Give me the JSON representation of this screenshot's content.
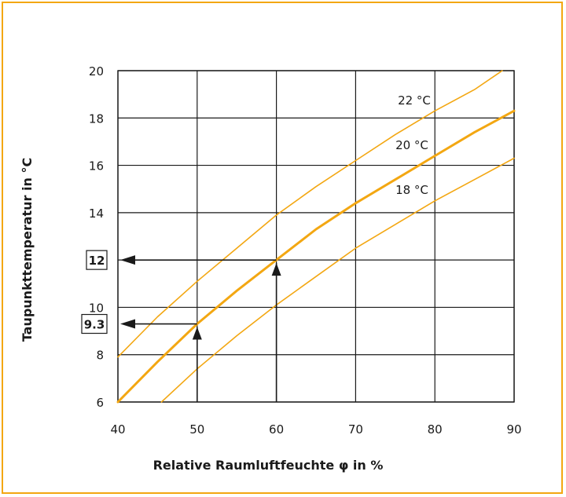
{
  "chart_data": {
    "type": "line",
    "xlabel": "Relative Raumluftfeuchte φ in %",
    "ylabel": "Taupunkttemperatur  in °C",
    "xlim": [
      40,
      90
    ],
    "ylim": [
      6,
      20
    ],
    "x_ticks": [
      "40",
      "50",
      "60",
      "70",
      "80",
      "90"
    ],
    "y_ticks": [
      "6",
      "8",
      "10",
      "14",
      "16",
      "18",
      "20"
    ],
    "grid": true,
    "colors": {
      "curve": "#f3a712",
      "grid": "#1a1a1a",
      "frame": "#f3a712",
      "arrow": "#1a1a1a"
    },
    "series": [
      {
        "name": "22 °C",
        "line_width": 1.6,
        "x": [
          40,
          45,
          50,
          55,
          60,
          65,
          70,
          75,
          80,
          85,
          88.5
        ],
        "y": [
          7.9,
          9.6,
          11.1,
          12.5,
          13.9,
          15.1,
          16.2,
          17.3,
          18.3,
          19.2,
          20.0
        ]
      },
      {
        "name": "20 °C",
        "line_width": 3,
        "x": [
          40,
          45,
          50,
          55,
          60,
          65,
          70,
          75,
          80,
          85,
          90
        ],
        "y": [
          6.0,
          7.7,
          9.3,
          10.7,
          12.0,
          13.3,
          14.4,
          15.4,
          16.4,
          17.4,
          18.3
        ]
      },
      {
        "name": "18 °C",
        "line_width": 1.6,
        "x": [
          45.5,
          50,
          55,
          60,
          65,
          70,
          75,
          80,
          85,
          90
        ],
        "y": [
          6.0,
          7.4,
          8.8,
          10.1,
          11.3,
          12.5,
          13.5,
          14.5,
          15.4,
          16.3
        ]
      }
    ],
    "guides": [
      {
        "x": 50,
        "y": 9.3,
        "label": "9.3"
      },
      {
        "x": 60,
        "y": 12,
        "label": "12"
      }
    ]
  }
}
